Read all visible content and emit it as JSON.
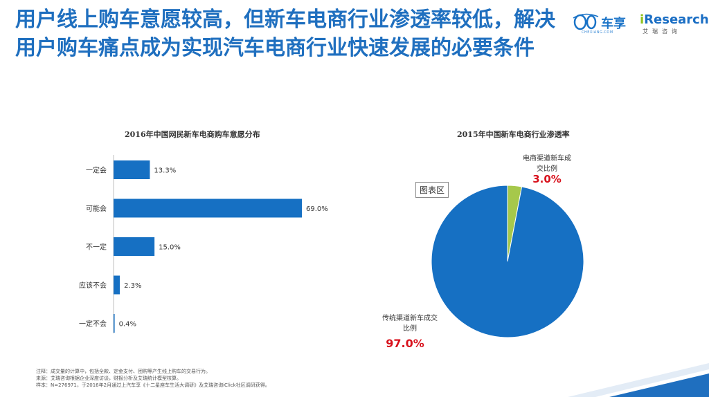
{
  "title": "用户线上购车意愿较高，但新车电商行业渗透率较低，解决用户购车痛点成为实现汽车电商行业快速发展的必要条件",
  "logos": {
    "chexiang": "车享",
    "chexiang_sub": "CHEXIANG.COM",
    "iresearch_i": "i",
    "iresearch": "Research",
    "iresearch_sub": "艾瑞咨询"
  },
  "chart_area_tag": "图表区",
  "notes": [
    "注释：成交量的计算中，包括全款、定金支付、团购等产生线上购车的交易行为。",
    "来源：艾瑞咨询根据企业深度访谈，财报分析及艾瑞统计模型核算。",
    "样本：N=276971，于2016年2月通过上汽车享《十二星座车生活大调研》及艾瑞咨询iClick社区调研获得。"
  ],
  "colors": {
    "title": "#1f6fbf",
    "bar": "#1670c3",
    "pie_main": "#1670c3",
    "pie_minor": "#a6c84b",
    "highlight": "#d8111c"
  },
  "chart_data": [
    {
      "type": "bar",
      "orientation": "horizontal",
      "title": "2016年中国网民新车电商购车意愿分布",
      "categories": [
        "一定会",
        "可能会",
        "不一定",
        "应该不会",
        "一定不会"
      ],
      "values": [
        13.3,
        69.0,
        15.0,
        2.3,
        0.4
      ],
      "value_labels": [
        "13.3%",
        "69.0%",
        "15.0%",
        "2.3%",
        "0.4%"
      ],
      "unit": "%",
      "xlim": [
        0,
        69.0
      ],
      "grid": false,
      "legend": "none"
    },
    {
      "type": "pie",
      "title": "2015年中国新车电商行业渗透率",
      "slices": [
        {
          "label": "电商渠道新车成交比例",
          "value": 3.0,
          "value_label": "3.0%",
          "color": "#a6c84b"
        },
        {
          "label": "传统渠道新车成交比例",
          "value": 97.0,
          "value_label": "97.0%",
          "color": "#1670c3"
        }
      ],
      "legend": "none"
    }
  ]
}
